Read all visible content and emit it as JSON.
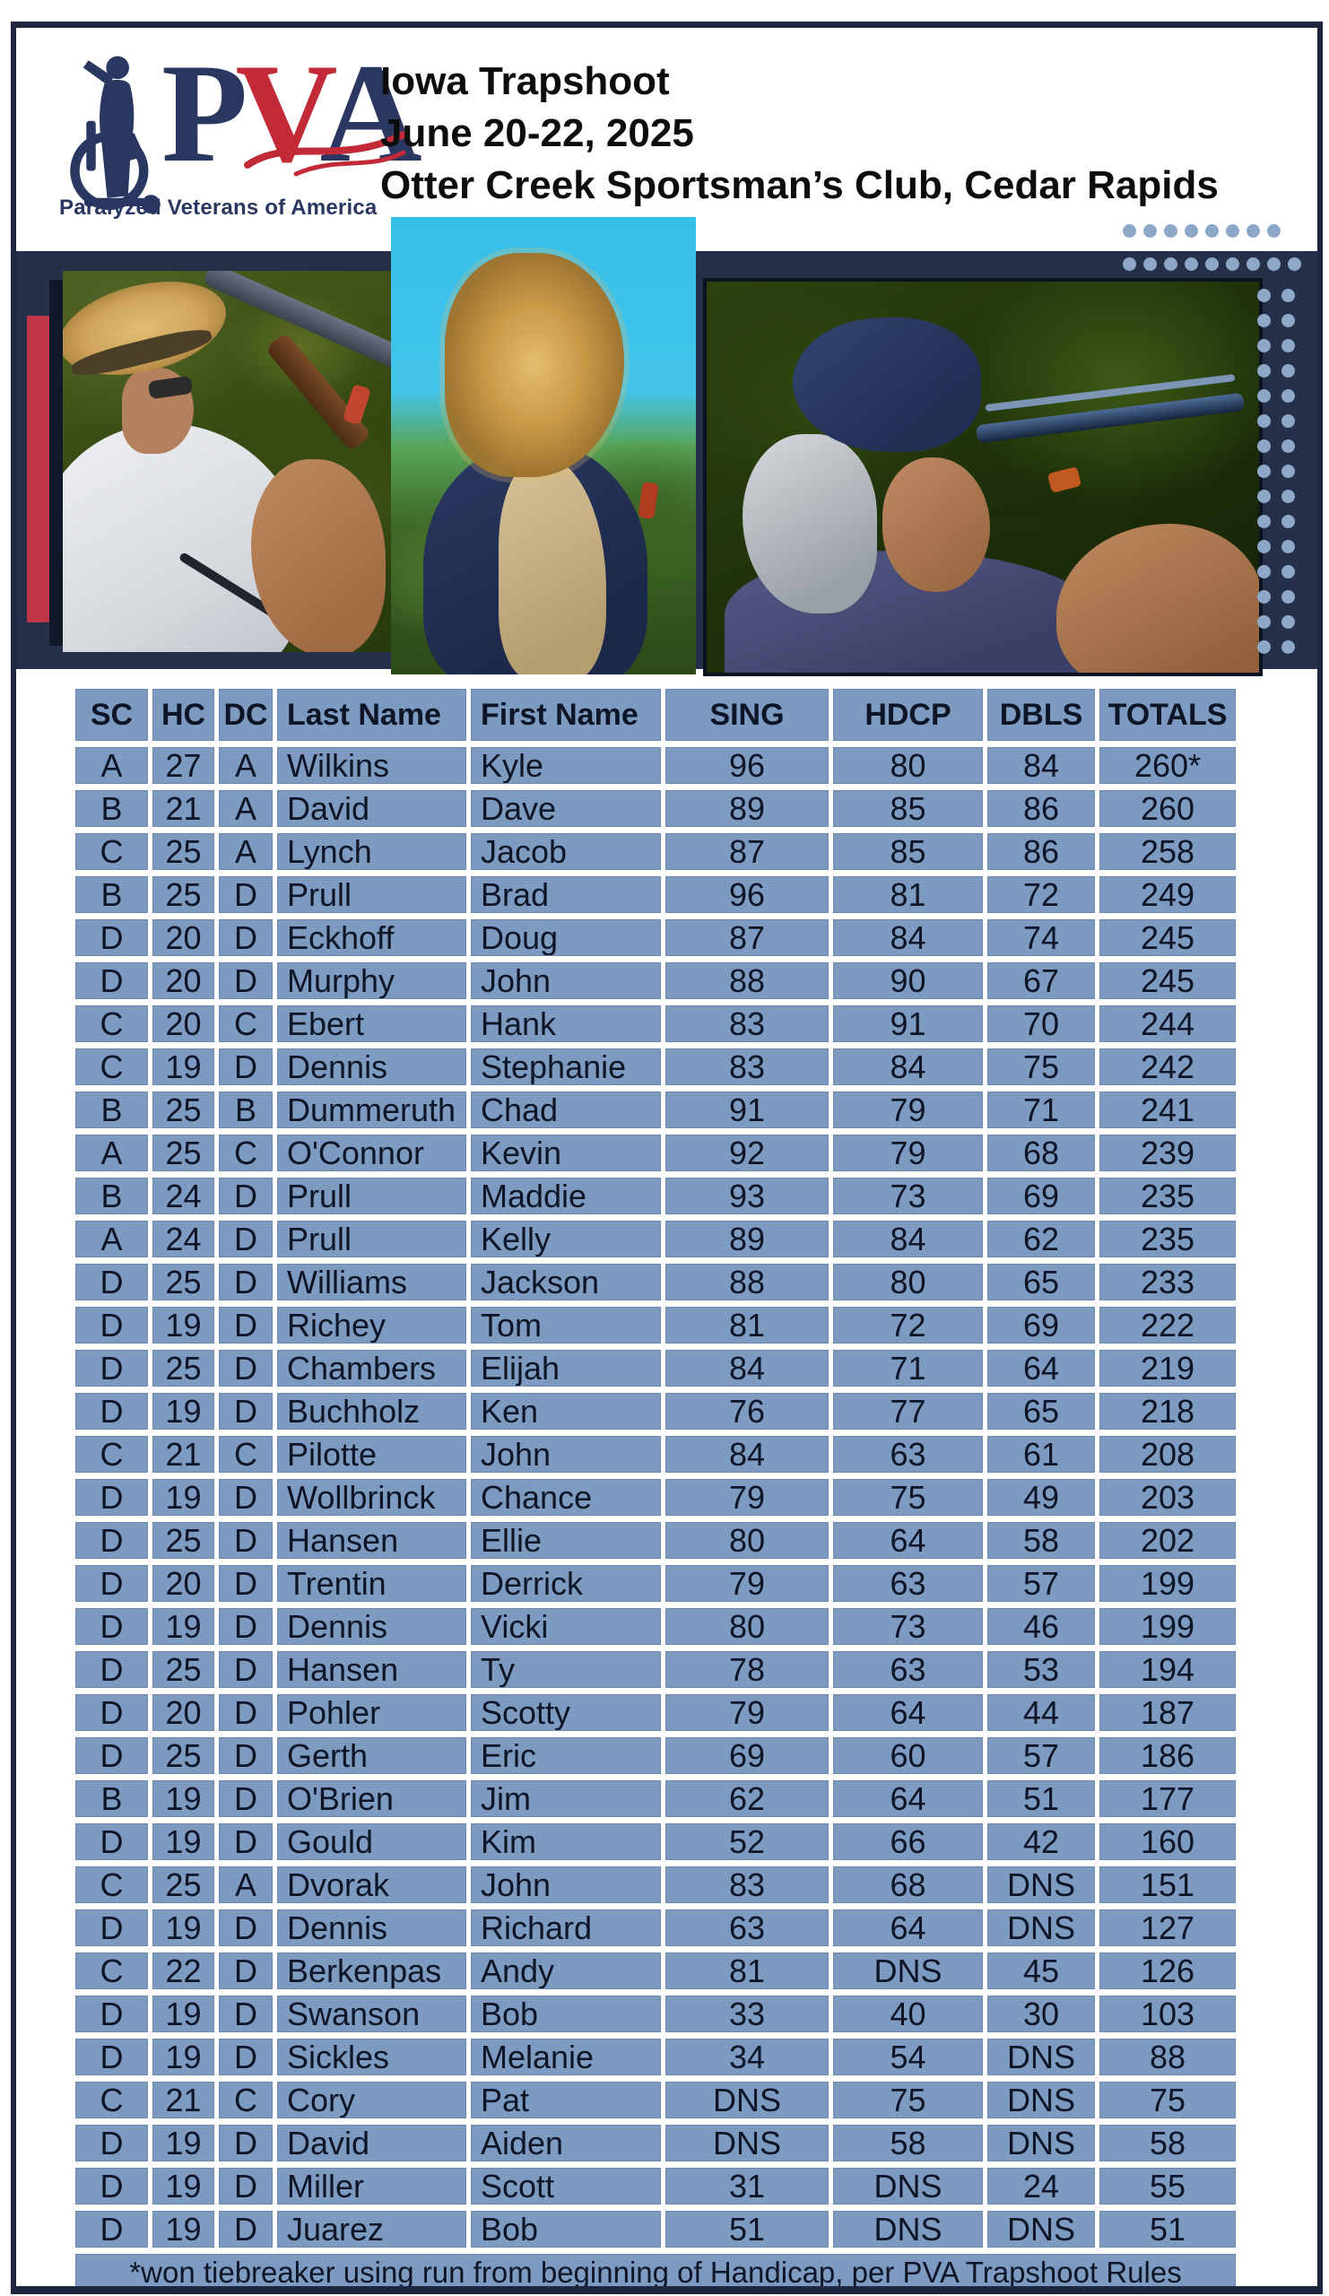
{
  "logo": {
    "p": "P",
    "v": "V",
    "a": "A",
    "tagline": "Paralyzed Veterans of America"
  },
  "header": {
    "title_lines": [
      "Iowa Trapshoot",
      "June 20-22, 2025",
      "Otter Creek Sportsman’s Club, Cedar Rapids"
    ]
  },
  "table": {
    "columns": [
      "SC",
      "HC",
      "DC",
      "Last Name",
      "First Name",
      "SING",
      "HDCP",
      "DBLS",
      "TOTALS"
    ],
    "rows": [
      [
        "A",
        "27",
        "A",
        "Wilkins",
        "Kyle",
        "96",
        "80",
        "84",
        "260*"
      ],
      [
        "B",
        "21",
        "A",
        "David",
        "Dave",
        "89",
        "85",
        "86",
        "260"
      ],
      [
        "C",
        "25",
        "A",
        "Lynch",
        "Jacob",
        "87",
        "85",
        "86",
        "258"
      ],
      [
        "B",
        "25",
        "D",
        "Prull",
        "Brad",
        "96",
        "81",
        "72",
        "249"
      ],
      [
        "D",
        "20",
        "D",
        "Eckhoff",
        "Doug",
        "87",
        "84",
        "74",
        "245"
      ],
      [
        "D",
        "20",
        "D",
        "Murphy",
        "John",
        "88",
        "90",
        "67",
        "245"
      ],
      [
        "C",
        "20",
        "C",
        "Ebert",
        "Hank",
        "83",
        "91",
        "70",
        "244"
      ],
      [
        "C",
        "19",
        "D",
        "Dennis",
        "Stephanie",
        "83",
        "84",
        "75",
        "242"
      ],
      [
        "B",
        "25",
        "B",
        "Dummeruth",
        "Chad",
        "91",
        "79",
        "71",
        "241"
      ],
      [
        "A",
        "25",
        "C",
        "O'Connor",
        "Kevin",
        "92",
        "79",
        "68",
        "239"
      ],
      [
        "B",
        "24",
        "D",
        "Prull",
        "Maddie",
        "93",
        "73",
        "69",
        "235"
      ],
      [
        "A",
        "24",
        "D",
        "Prull",
        "Kelly",
        "89",
        "84",
        "62",
        "235"
      ],
      [
        "D",
        "25",
        "D",
        "Williams",
        "Jackson",
        "88",
        "80",
        "65",
        "233"
      ],
      [
        "D",
        "19",
        "D",
        "Richey",
        "Tom",
        "81",
        "72",
        "69",
        "222"
      ],
      [
        "D",
        "25",
        "D",
        "Chambers",
        "Elijah",
        "84",
        "71",
        "64",
        "219"
      ],
      [
        "D",
        "19",
        "D",
        "Buchholz",
        "Ken",
        "76",
        "77",
        "65",
        "218"
      ],
      [
        "C",
        "21",
        "C",
        "Pilotte",
        "John",
        "84",
        "63",
        "61",
        "208"
      ],
      [
        "D",
        "19",
        "D",
        "Wollbrinck",
        "Chance",
        "79",
        "75",
        "49",
        "203"
      ],
      [
        "D",
        "25",
        "D",
        "Hansen",
        "Ellie",
        "80",
        "64",
        "58",
        "202"
      ],
      [
        "D",
        "20",
        "D",
        "Trentin",
        "Derrick",
        "79",
        "63",
        "57",
        "199"
      ],
      [
        "D",
        "19",
        "D",
        "Dennis",
        "Vicki",
        "80",
        "73",
        "46",
        "199"
      ],
      [
        "D",
        "25",
        "D",
        "Hansen",
        "Ty",
        "78",
        "63",
        "53",
        "194"
      ],
      [
        "D",
        "20",
        "D",
        "Pohler",
        "Scotty",
        "79",
        "64",
        "44",
        "187"
      ],
      [
        "D",
        "25",
        "D",
        "Gerth",
        "Eric",
        "69",
        "60",
        "57",
        "186"
      ],
      [
        "B",
        "19",
        "D",
        "O'Brien",
        "Jim",
        "62",
        "64",
        "51",
        "177"
      ],
      [
        "D",
        "19",
        "D",
        "Gould",
        "Kim",
        "52",
        "66",
        "42",
        "160"
      ],
      [
        "C",
        "25",
        "A",
        "Dvorak",
        "John",
        "83",
        "68",
        "DNS",
        "151"
      ],
      [
        "D",
        "19",
        "D",
        "Dennis",
        "Richard",
        "63",
        "64",
        "DNS",
        "127"
      ],
      [
        "C",
        "22",
        "D",
        "Berkenpas",
        "Andy",
        "81",
        "DNS",
        "45",
        "126"
      ],
      [
        "D",
        "19",
        "D",
        "Swanson",
        "Bob",
        "33",
        "40",
        "30",
        "103"
      ],
      [
        "D",
        "19",
        "D",
        "Sickles",
        "Melanie",
        "34",
        "54",
        "DNS",
        "88"
      ],
      [
        "C",
        "21",
        "C",
        "Cory",
        "Pat",
        "DNS",
        "75",
        "DNS",
        "75"
      ],
      [
        "D",
        "19",
        "D",
        "David",
        "Aiden",
        "DNS",
        "58",
        "DNS",
        "58"
      ],
      [
        "D",
        "19",
        "D",
        "Miller",
        "Scott",
        "31",
        "DNS",
        "24",
        "55"
      ],
      [
        "D",
        "19",
        "D",
        "Juarez",
        "Bob",
        "51",
        "DNS",
        "DNS",
        "51"
      ]
    ],
    "footnote": "*won tiebreaker using run from beginning of Handicap, per PVA Trapshoot Rules"
  },
  "colors": {
    "cell-blue": "#7d9ac1",
    "cell-border": "#6c88ae",
    "band-navy": "#262f48",
    "accent-red": "#bf3648",
    "dot-blue": "#8ca7c8",
    "text-dark": "#0d1526",
    "frame-dark": "#1f2740",
    "logo-navy": "#2a3760",
    "logo-red": "#c22a38"
  }
}
